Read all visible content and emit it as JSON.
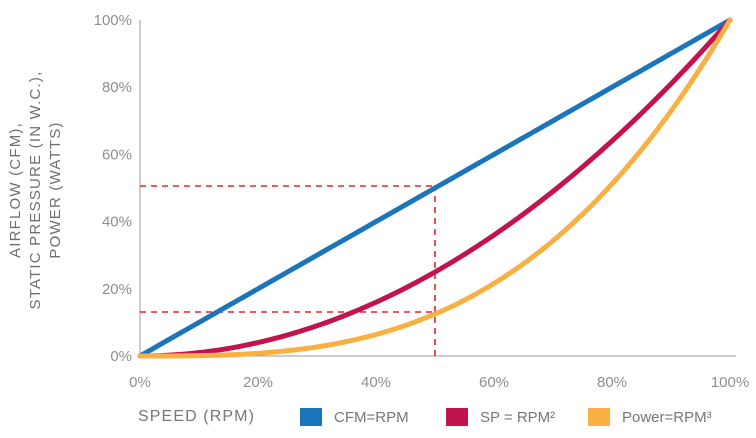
{
  "chart_data": {
    "type": "line",
    "xlabel": "SPEED (RPM)",
    "ylabel_lines": [
      "AIRFLOW (CFM),",
      "STATIC PRESSURE (IN W.C.),",
      "POWER (WATTS)"
    ],
    "x_ticks": [
      "0%",
      "20%",
      "40%",
      "60%",
      "80%",
      "100%"
    ],
    "y_ticks": [
      "0%",
      "20%",
      "40%",
      "60%",
      "80%",
      "100%"
    ],
    "xlim": [
      0,
      100
    ],
    "ylim": [
      0,
      100
    ],
    "grid": false,
    "legend_position": "bottom",
    "series": [
      {
        "key": "cfm",
        "name": "CFM=RPM",
        "color": "#1b75bb",
        "exponent": 1,
        "x": [
          0,
          10,
          20,
          30,
          40,
          50,
          60,
          70,
          80,
          90,
          100
        ],
        "values": [
          0,
          10,
          20,
          30,
          40,
          50,
          60,
          70,
          80,
          90,
          100
        ]
      },
      {
        "key": "sp",
        "name": "SP = RPM²",
        "color": "#c4124f",
        "exponent": 2,
        "x": [
          0,
          10,
          20,
          30,
          40,
          50,
          60,
          70,
          80,
          90,
          100
        ],
        "values": [
          0,
          1,
          4,
          9,
          16,
          25,
          36,
          49,
          64,
          81,
          100
        ]
      },
      {
        "key": "power",
        "name": "Power=RPM³",
        "color": "#f9b043",
        "exponent": 3,
        "x": [
          0,
          10,
          20,
          30,
          40,
          50,
          60,
          70,
          80,
          90,
          100
        ],
        "values": [
          0,
          0.1,
          0.8,
          2.7,
          6.4,
          12.5,
          21.6,
          34.3,
          51.2,
          72.9,
          100
        ]
      }
    ],
    "annotations": {
      "color": "#e0262b",
      "guide_x": 50,
      "guide_y_values": [
        50,
        12.5
      ]
    }
  }
}
